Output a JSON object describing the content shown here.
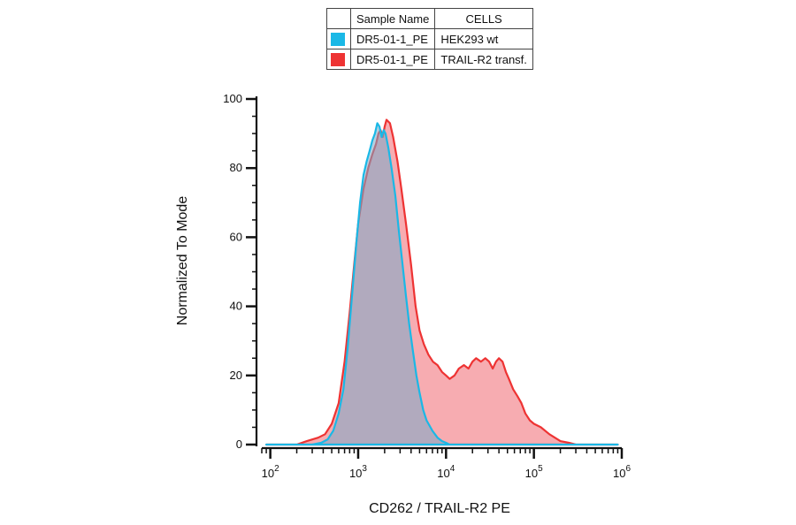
{
  "legend": {
    "header_sample": "Sample Name",
    "header_cells": "CELLS",
    "rows": [
      {
        "sample": "DR5-01-1_PE",
        "cells": "HEK293 wt",
        "color": "#1ab8e6"
      },
      {
        "sample": "DR5-01-1_PE",
        "cells": "TRAIL-R2 transf.",
        "color": "#ee3333"
      }
    ]
  },
  "chart_data": {
    "type": "area",
    "xlabel": "CD262 / TRAIL-R2 PE",
    "ylabel": "Normalized To Mode",
    "x_scale": "log",
    "xlim": [
      80,
      1000000
    ],
    "ylim": [
      0,
      100
    ],
    "y_ticks": [
      0,
      20,
      40,
      60,
      80,
      100
    ],
    "x_ticks": [
      {
        "value": 100,
        "base": "10",
        "exp": "2"
      },
      {
        "value": 1000,
        "base": "10",
        "exp": "3"
      },
      {
        "value": 10000,
        "base": "10",
        "exp": "4"
      },
      {
        "value": 100000,
        "base": "10",
        "exp": "5"
      },
      {
        "value": 1000000,
        "base": "10",
        "exp": "6"
      }
    ],
    "series": [
      {
        "name": "TRAIL-R2 transf.",
        "color": "#ee3333",
        "fill": "rgba(240,90,100,0.5)",
        "points": [
          [
            90,
            0
          ],
          [
            200,
            0
          ],
          [
            260,
            1
          ],
          [
            350,
            2
          ],
          [
            420,
            3
          ],
          [
            500,
            6
          ],
          [
            600,
            12
          ],
          [
            700,
            24
          ],
          [
            800,
            38
          ],
          [
            900,
            52
          ],
          [
            1000,
            64
          ],
          [
            1150,
            74
          ],
          [
            1300,
            80
          ],
          [
            1450,
            84
          ],
          [
            1600,
            87
          ],
          [
            1700,
            90
          ],
          [
            1800,
            91
          ],
          [
            1900,
            89
          ],
          [
            2000,
            92
          ],
          [
            2100,
            94
          ],
          [
            2300,
            93
          ],
          [
            2500,
            89
          ],
          [
            2800,
            82
          ],
          [
            3100,
            74
          ],
          [
            3500,
            64
          ],
          [
            4000,
            52
          ],
          [
            4500,
            40
          ],
          [
            5000,
            33
          ],
          [
            5600,
            29
          ],
          [
            6300,
            26
          ],
          [
            7100,
            24
          ],
          [
            8000,
            23
          ],
          [
            9000,
            21
          ],
          [
            10000,
            20
          ],
          [
            11000,
            19
          ],
          [
            12500,
            20
          ],
          [
            14000,
            22
          ],
          [
            16000,
            23
          ],
          [
            18000,
            22
          ],
          [
            20000,
            24
          ],
          [
            22000,
            25
          ],
          [
            25000,
            24
          ],
          [
            28000,
            25
          ],
          [
            31000,
            24
          ],
          [
            34000,
            22
          ],
          [
            37000,
            24
          ],
          [
            40000,
            25
          ],
          [
            44000,
            24
          ],
          [
            48000,
            21
          ],
          [
            52000,
            19
          ],
          [
            58000,
            16
          ],
          [
            65000,
            14
          ],
          [
            72000,
            12
          ],
          [
            80000,
            9
          ],
          [
            90000,
            7
          ],
          [
            100000,
            6
          ],
          [
            120000,
            5
          ],
          [
            150000,
            3
          ],
          [
            200000,
            1
          ],
          [
            250000,
            0.5
          ],
          [
            300000,
            0
          ],
          [
            900000,
            0
          ]
        ]
      },
      {
        "name": "HEK293 wt",
        "color": "#1ab8e6",
        "fill": "rgba(120,170,200,0.55)",
        "points": [
          [
            90,
            0
          ],
          [
            300,
            0
          ],
          [
            380,
            0.5
          ],
          [
            450,
            1.5
          ],
          [
            520,
            4
          ],
          [
            600,
            9
          ],
          [
            680,
            16
          ],
          [
            760,
            28
          ],
          [
            850,
            43
          ],
          [
            950,
            58
          ],
          [
            1050,
            70
          ],
          [
            1150,
            78
          ],
          [
            1250,
            82
          ],
          [
            1350,
            85
          ],
          [
            1450,
            88
          ],
          [
            1550,
            90
          ],
          [
            1650,
            93
          ],
          [
            1750,
            92
          ],
          [
            1850,
            89
          ],
          [
            1950,
            91
          ],
          [
            2050,
            90
          ],
          [
            2200,
            86
          ],
          [
            2400,
            80
          ],
          [
            2650,
            72
          ],
          [
            2900,
            62
          ],
          [
            3200,
            52
          ],
          [
            3500,
            43
          ],
          [
            3800,
            35
          ],
          [
            4200,
            27
          ],
          [
            4600,
            20
          ],
          [
            5000,
            15
          ],
          [
            5500,
            10
          ],
          [
            6000,
            7
          ],
          [
            7000,
            4
          ],
          [
            8000,
            2
          ],
          [
            9000,
            1
          ],
          [
            10000,
            0.5
          ],
          [
            11000,
            0
          ],
          [
            900000,
            0
          ]
        ]
      }
    ]
  }
}
